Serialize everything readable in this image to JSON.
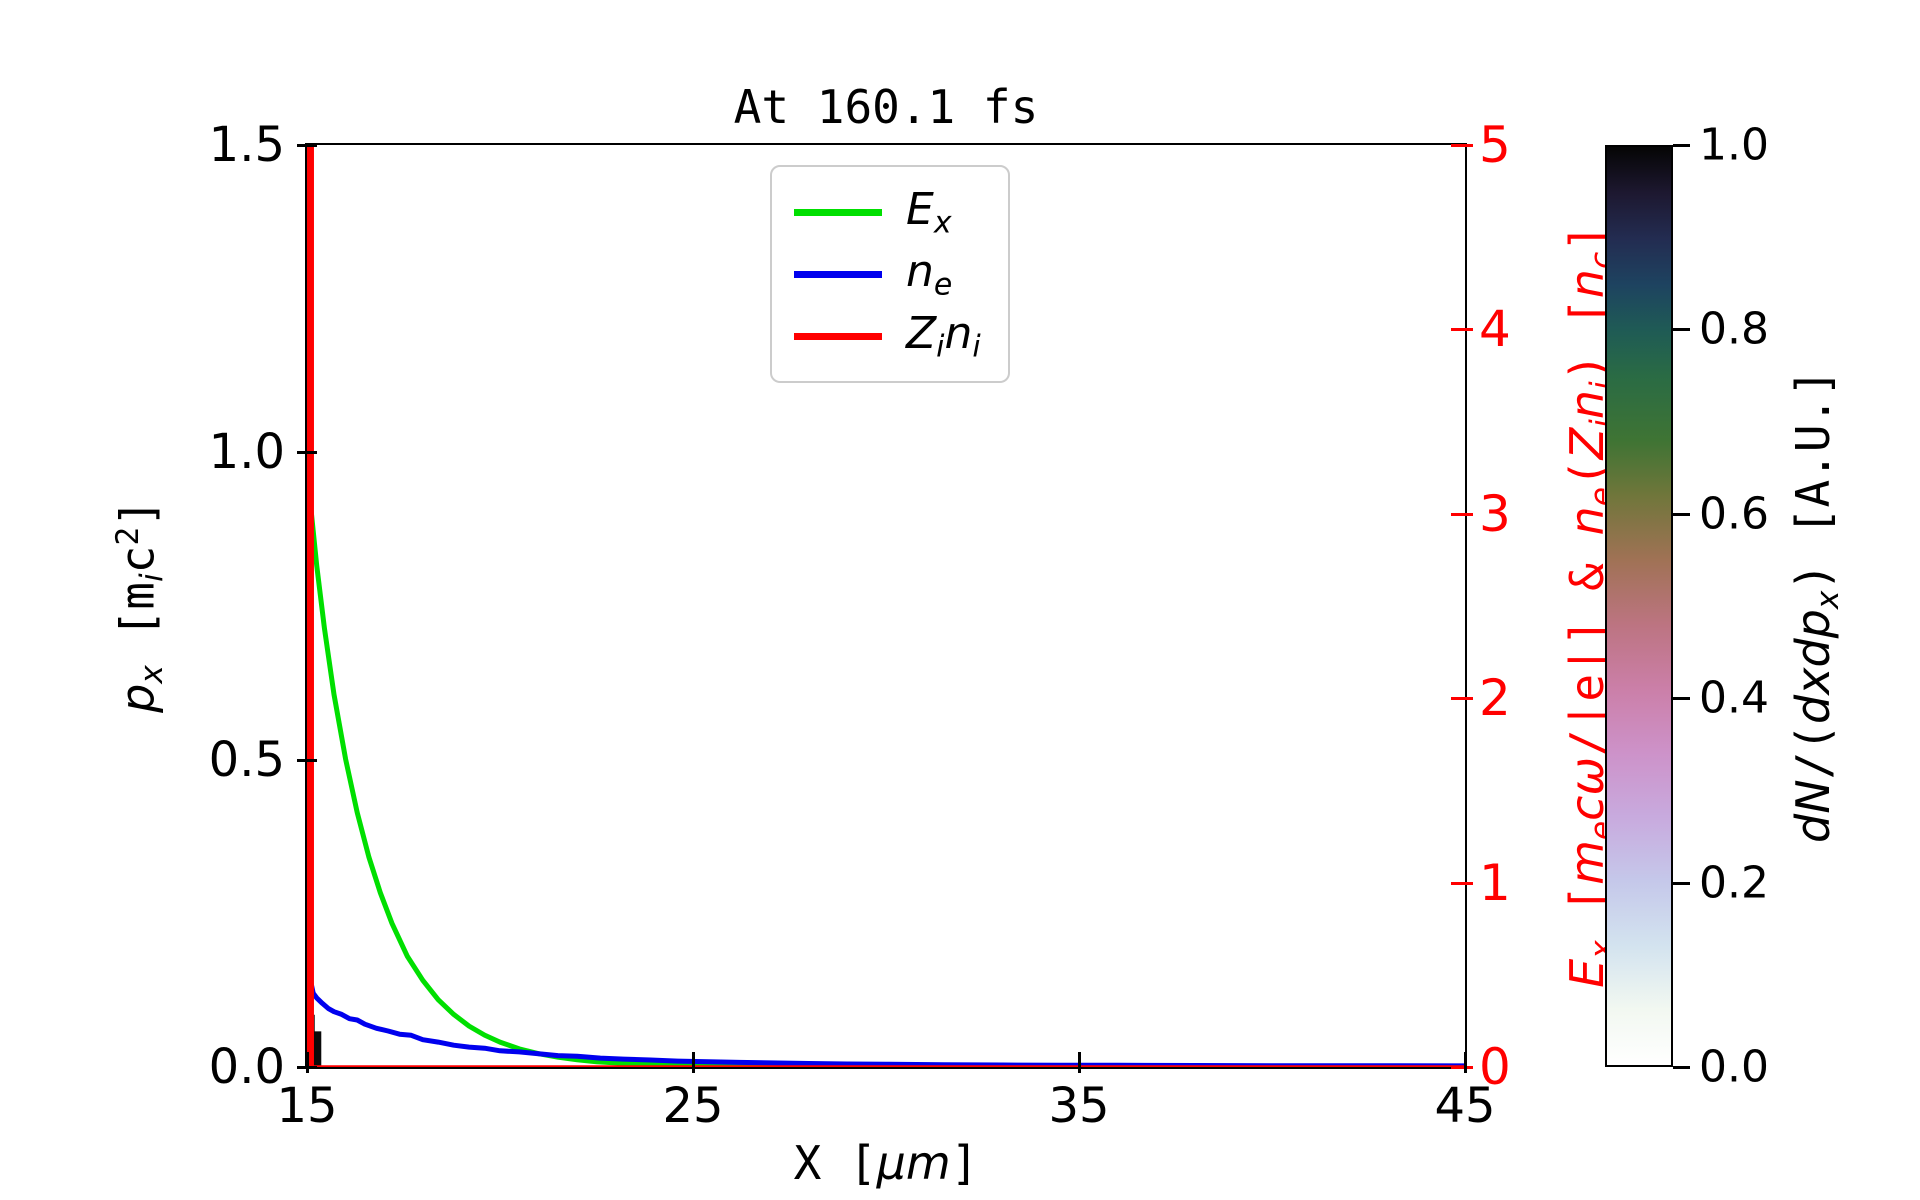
{
  "title": "At 160.1 fs",
  "colors": {
    "green": "#00df00",
    "blue": "#0000ee",
    "red": "#ff0000",
    "axis": "#000000",
    "legend_border": "#cccccc",
    "histogram_patch": "#0a0a0a"
  },
  "axes": {
    "x": {
      "label_segments": [
        {
          "t": "X [",
          "s": "rm"
        },
        {
          "t": "μm",
          "s": "it"
        },
        {
          "t": "]",
          "s": "rm"
        }
      ],
      "ticks": [
        {
          "v": 15,
          "label": "15"
        },
        {
          "v": 25,
          "label": "25"
        },
        {
          "v": 35,
          "label": "35"
        },
        {
          "v": 45,
          "label": "45"
        }
      ],
      "range": [
        15,
        45
      ]
    },
    "left": {
      "label_segments": [
        {
          "t": "p",
          "s": "it"
        },
        {
          "t": "x",
          "s": "subit"
        },
        {
          "t": " [m",
          "s": "rm"
        },
        {
          "t": "i",
          "s": "subit"
        },
        {
          "t": "c",
          "s": "rm"
        },
        {
          "t": "2",
          "s": "sup"
        },
        {
          "t": "]",
          "s": "rm"
        }
      ],
      "ticks": [
        {
          "v": 1.5,
          "label": "1.5"
        },
        {
          "v": 1.0,
          "label": "1.0"
        },
        {
          "v": 0.5,
          "label": "0.5"
        },
        {
          "v": 0.0,
          "label": "0.0"
        }
      ],
      "range": [
        0,
        1.5
      ]
    },
    "right": {
      "label_segments": [
        {
          "t": "E",
          "s": "it"
        },
        {
          "t": "x",
          "s": "subit"
        },
        {
          "t": " [",
          "s": "rm"
        },
        {
          "t": "m",
          "s": "it"
        },
        {
          "t": "e",
          "s": "subit"
        },
        {
          "t": "cω",
          "s": "it"
        },
        {
          "t": "/|e|] & ",
          "s": "rm"
        },
        {
          "t": "n",
          "s": "it"
        },
        {
          "t": "e",
          "s": "subit"
        },
        {
          "t": "(",
          "s": "rm"
        },
        {
          "t": "Z",
          "s": "it"
        },
        {
          "t": "i",
          "s": "subit"
        },
        {
          "t": "n",
          "s": "it"
        },
        {
          "t": "i",
          "s": "subit"
        },
        {
          "t": ") [",
          "s": "rm"
        },
        {
          "t": "n",
          "s": "it"
        },
        {
          "t": "c",
          "s": "subit"
        },
        {
          "t": "]",
          "s": "rm"
        }
      ],
      "ticks": [
        {
          "v": 5,
          "label": "5"
        },
        {
          "v": 4,
          "label": "4"
        },
        {
          "v": 3,
          "label": "3"
        },
        {
          "v": 2,
          "label": "2"
        },
        {
          "v": 1,
          "label": "1"
        },
        {
          "v": 0,
          "label": "0"
        }
      ],
      "range": [
        0,
        5
      ]
    }
  },
  "legend": {
    "items": [
      {
        "color": "#00df00",
        "parts": [
          [
            "E",
            "x"
          ]
        ]
      },
      {
        "color": "#0000ee",
        "parts": [
          [
            "n",
            "e"
          ]
        ]
      },
      {
        "color": "#ff0000",
        "parts": [
          [
            "Z",
            "i"
          ],
          [
            "n",
            "i"
          ]
        ]
      }
    ]
  },
  "colorbar": {
    "ticks": [
      {
        "v": 1.0,
        "label": "1.0"
      },
      {
        "v": 0.8,
        "label": "0.8"
      },
      {
        "v": 0.6,
        "label": "0.6"
      },
      {
        "v": 0.4,
        "label": "0.4"
      },
      {
        "v": 0.2,
        "label": "0.2"
      },
      {
        "v": 0.0,
        "label": "0.0"
      }
    ],
    "label_segments": [
      {
        "t": "dN",
        "s": "it"
      },
      {
        "t": "/(",
        "s": "rm"
      },
      {
        "t": "dxdp",
        "s": "it"
      },
      {
        "t": "x",
        "s": "subit"
      },
      {
        "t": ") [A.U.]",
        "s": "rm"
      }
    ],
    "gradient_stops": [
      [
        0.0,
        "#ffffff"
      ],
      [
        0.06,
        "#f2f8f1"
      ],
      [
        0.13,
        "#d3e3ef"
      ],
      [
        0.2,
        "#c5c8ea"
      ],
      [
        0.27,
        "#c8aade"
      ],
      [
        0.34,
        "#cd92c9"
      ],
      [
        0.41,
        "#cb7fa8"
      ],
      [
        0.48,
        "#bc7481"
      ],
      [
        0.55,
        "#a07255"
      ],
      [
        0.62,
        "#70763b"
      ],
      [
        0.68,
        "#3f7434"
      ],
      [
        0.75,
        "#2a6b44"
      ],
      [
        0.8,
        "#1f5b55"
      ],
      [
        0.85,
        "#1e4360"
      ],
      [
        0.9,
        "#232c51"
      ],
      [
        0.95,
        "#1d1830"
      ],
      [
        1.0,
        "#050505"
      ]
    ],
    "range": [
      0.0,
      1.0
    ]
  },
  "chart_data": {
    "type": "line",
    "title": "At 160.1 fs",
    "x_axis": {
      "label": "X [μm]",
      "range": [
        15,
        45
      ],
      "ticks": [
        15,
        25,
        35,
        45
      ]
    },
    "y_left_axis": {
      "label": "p_x [m_i c^2]",
      "range": [
        0,
        1.5
      ],
      "ticks": [
        0.0,
        0.5,
        1.0,
        1.5
      ]
    },
    "y_right_axis": {
      "label": "E_x [m_e c ω/|e|] & n_e(Z_i n_i) [n_c]",
      "range": [
        0,
        5
      ],
      "ticks": [
        0,
        1,
        2,
        3,
        4,
        5
      ]
    },
    "legend_position": "upper center",
    "grid": false,
    "series": [
      {
        "name": "E_x",
        "axis": "right",
        "color": "#00df00",
        "points": [
          [
            15.08,
            3.3
          ],
          [
            15.1,
            3.03
          ],
          [
            15.25,
            2.72
          ],
          [
            15.45,
            2.38
          ],
          [
            15.7,
            2.02
          ],
          [
            16.0,
            1.67
          ],
          [
            16.3,
            1.38
          ],
          [
            16.6,
            1.14
          ],
          [
            16.9,
            0.945
          ],
          [
            17.2,
            0.78
          ],
          [
            17.6,
            0.6
          ],
          [
            18.0,
            0.47
          ],
          [
            18.4,
            0.365
          ],
          [
            18.8,
            0.285
          ],
          [
            19.2,
            0.222
          ],
          [
            19.6,
            0.173
          ],
          [
            20.0,
            0.135
          ],
          [
            20.5,
            0.098
          ],
          [
            21.0,
            0.072
          ],
          [
            21.5,
            0.053
          ],
          [
            22.0,
            0.039
          ],
          [
            22.5,
            0.029
          ],
          [
            23.0,
            0.022
          ],
          [
            23.5,
            0.016
          ],
          [
            24.0,
            0.012
          ],
          [
            24.8,
            0.008
          ],
          [
            25.6,
            0.005
          ],
          [
            26.5,
            0.003
          ],
          [
            27.5,
            0.002
          ],
          [
            29.0,
            0.001
          ],
          [
            31.0,
            0.0006
          ],
          [
            45.0,
            0.0004
          ]
        ]
      },
      {
        "name": "n_e",
        "axis": "right",
        "color": "#0000ee",
        "points": [
          [
            15.0,
            0.02
          ],
          [
            15.03,
            0.68
          ],
          [
            15.06,
            0.55
          ],
          [
            15.1,
            0.46
          ],
          [
            15.16,
            0.4
          ],
          [
            15.25,
            0.375
          ],
          [
            15.4,
            0.345
          ],
          [
            15.55,
            0.318
          ],
          [
            15.7,
            0.3
          ],
          [
            15.9,
            0.285
          ],
          [
            16.1,
            0.262
          ],
          [
            16.3,
            0.255
          ],
          [
            16.5,
            0.232
          ],
          [
            16.8,
            0.21
          ],
          [
            17.1,
            0.195
          ],
          [
            17.4,
            0.178
          ],
          [
            17.7,
            0.172
          ],
          [
            18.0,
            0.148
          ],
          [
            18.4,
            0.135
          ],
          [
            18.8,
            0.118
          ],
          [
            19.2,
            0.108
          ],
          [
            19.6,
            0.102
          ],
          [
            20.0,
            0.088
          ],
          [
            20.5,
            0.082
          ],
          [
            21.0,
            0.072
          ],
          [
            21.5,
            0.062
          ],
          [
            22.0,
            0.058
          ],
          [
            22.6,
            0.048
          ],
          [
            23.2,
            0.043
          ],
          [
            23.9,
            0.038
          ],
          [
            24.6,
            0.032
          ],
          [
            25.4,
            0.028
          ],
          [
            26.2,
            0.025
          ],
          [
            27.0,
            0.022
          ],
          [
            28.0,
            0.019
          ],
          [
            29.0,
            0.016
          ],
          [
            30.0,
            0.015
          ],
          [
            31.5,
            0.012
          ],
          [
            33.0,
            0.011
          ],
          [
            34.5,
            0.009
          ],
          [
            36.0,
            0.009
          ],
          [
            38.0,
            0.008
          ],
          [
            40.0,
            0.007
          ],
          [
            42.0,
            0.007
          ],
          [
            45.0,
            0.006
          ]
        ]
      },
      {
        "name": "Z_i n_i",
        "axis": "right",
        "color": "#ff0000",
        "description": "delta-like front-surface spike at x≈15.1 μm exceeding axis max (≥5 n_c); ≈0 elsewhere",
        "spike": {
          "x": 15.09,
          "top": 5.6
        },
        "baseline_points": [
          [
            15.0,
            0.0
          ],
          [
            45.0,
            0.0
          ]
        ]
      }
    ],
    "phase_space_histogram": {
      "label": "dN/(dxdp_x) [A.U.]",
      "colormap": "white → pale blue → lavender → pink → olive → green → dark teal → black (cubehelix-like reversed)",
      "colorbar_range": [
        0.0,
        1.0
      ],
      "visible_patches": [
        {
          "x": [
            15.0,
            15.37
          ],
          "p_x": [
            0.0,
            0.058
          ],
          "value": "≈1.0 (black)"
        },
        {
          "x": [
            15.0,
            15.2
          ],
          "p_x": [
            0.0,
            0.085
          ],
          "value": "≈1.0 (black)"
        }
      ]
    }
  }
}
